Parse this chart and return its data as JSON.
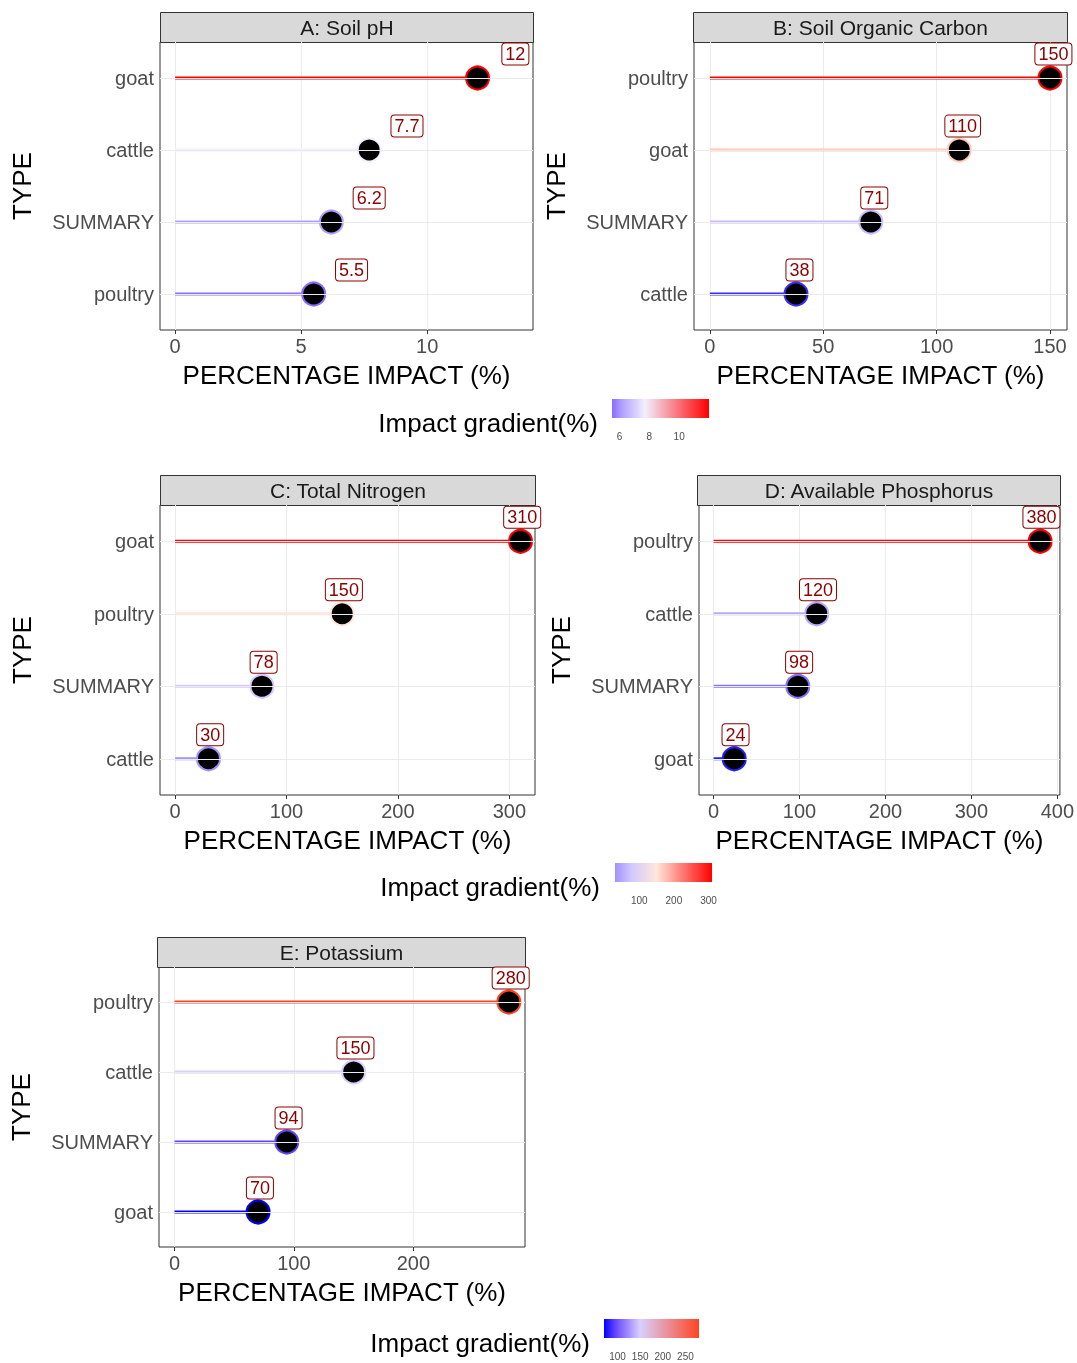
{
  "chart_data": [
    {
      "type": "lollipop",
      "title": "A: Soil pH",
      "xlabel": "PERCENTAGE IMPACT (%)",
      "ylabel": "TYPE",
      "orientation": "horizontal",
      "categories": [
        "goat",
        "cattle",
        "SUMMARY",
        "poultry"
      ],
      "values": [
        12,
        7.7,
        6.2,
        5.5
      ],
      "colors": [
        "#ff0000",
        "#f2efff",
        "#b3a1ff",
        "#8a6cff"
      ],
      "xlim": [
        -0.6,
        14.2
      ],
      "xticks": [
        0,
        5,
        10
      ],
      "grid": true,
      "data_labels": true,
      "marker": "circle",
      "clabel": "Impact gradient(%)",
      "clim": [
        5.5,
        12
      ],
      "cticks": [
        6,
        8,
        10
      ]
    },
    {
      "type": "lollipop",
      "title": "B: Soil Organic Carbon",
      "xlabel": "PERCENTAGE IMPACT (%)",
      "ylabel": "TYPE",
      "orientation": "horizontal",
      "categories": [
        "poultry",
        "goat",
        "SUMMARY",
        "cattle"
      ],
      "values": [
        150,
        110,
        71,
        38
      ],
      "colors": [
        "#ff0000",
        "#ffcabb",
        "#cbbcff",
        "#3b2bff"
      ],
      "xlim": [
        -7,
        157.5
      ],
      "xticks": [
        0,
        50,
        100,
        150
      ],
      "grid": true,
      "data_labels": true,
      "marker": "circle"
    },
    {
      "type": "lollipop",
      "title": "C: Total Nitrogen",
      "xlabel": "PERCENTAGE IMPACT (%)",
      "ylabel": "TYPE",
      "orientation": "horizontal",
      "categories": [
        "goat",
        "poultry",
        "SUMMARY",
        "cattle"
      ],
      "values": [
        310,
        150,
        78,
        30
      ],
      "colors": [
        "#ff0000",
        "#ffe6dc",
        "#d2c9ff",
        "#a291ff"
      ],
      "xlim": [
        -13.5,
        323
      ],
      "xticks": [
        0,
        100,
        200,
        300
      ],
      "grid": true,
      "data_labels": true,
      "marker": "circle",
      "clabel": "Impact gradient(%)",
      "clim": [
        30,
        310
      ],
      "cticks": [
        100,
        200,
        300
      ]
    },
    {
      "type": "lollipop",
      "title": "D: Available Phosphorus",
      "xlabel": "PERCENTAGE IMPACT (%)",
      "ylabel": "TYPE",
      "orientation": "horizontal",
      "categories": [
        "poultry",
        "cattle",
        "SUMMARY",
        "goat"
      ],
      "values": [
        380,
        120,
        98,
        24
      ],
      "colors": [
        "#ff0000",
        "#b9a9ff",
        "#8272ff",
        "#2020ff"
      ],
      "xlim": [
        -17,
        403
      ],
      "xticks": [
        0,
        100,
        200,
        300,
        400
      ],
      "grid": true,
      "data_labels": true,
      "marker": "circle"
    },
    {
      "type": "lollipop",
      "title": "E: Potassium",
      "xlabel": "PERCENTAGE IMPACT (%)",
      "ylabel": "TYPE",
      "orientation": "horizontal",
      "categories": [
        "poultry",
        "cattle",
        "SUMMARY",
        "goat"
      ],
      "values": [
        280,
        150,
        94,
        70
      ],
      "colors": [
        "#ff4422",
        "#d9d0ff",
        "#6243ff",
        "#0000ff"
      ],
      "xlim": [
        -13,
        293.5
      ],
      "xticks": [
        0,
        100,
        200
      ],
      "grid": true,
      "data_labels": true,
      "marker": "circle",
      "clabel": "Impact gradient(%)",
      "clim": [
        70,
        280
      ],
      "cticks": [
        100,
        150,
        200,
        250
      ]
    }
  ]
}
